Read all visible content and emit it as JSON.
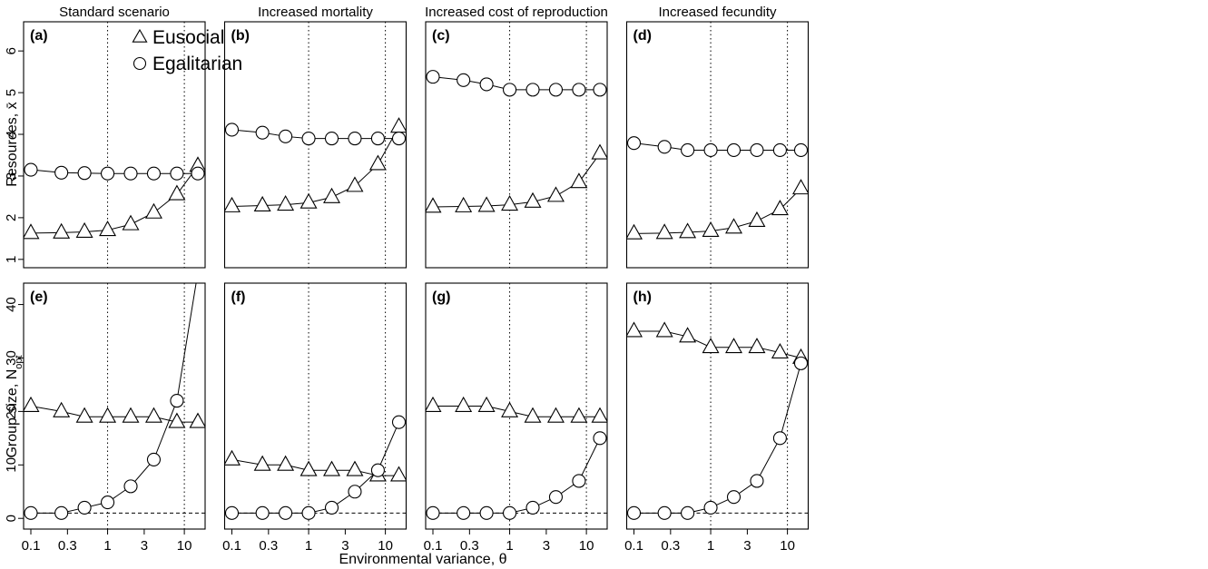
{
  "figure": {
    "xlabel": "Environmental variance, θ",
    "ylabel_top": "Resources, x̄",
    "ylabel_bottom_main": "Group size, N",
    "ylabel_bottom_sub": "opt"
  },
  "legend": {
    "placement": "top-right of panel (a)",
    "entries": [
      {
        "series": "Eusocial",
        "marker": "triangle"
      },
      {
        "series": "Egalitarian",
        "marker": "circle"
      }
    ]
  },
  "columns": [
    "Standard scenario",
    "Increased mortality",
    "Increased cost of reproduction",
    "Increased fecundity"
  ],
  "chart_data": [
    {
      "type": "line",
      "panel": "(a)",
      "column": "Standard scenario",
      "x_scale": "log",
      "xlim": [
        0.1,
        15
      ],
      "ylim": [
        0.8,
        6.7
      ],
      "x_ticks": [
        "0.1",
        "0.3",
        "1",
        "3",
        "10"
      ],
      "y_ticks": [
        "1",
        "2",
        "3",
        "4",
        "5",
        "6"
      ],
      "vlines": [
        1,
        10
      ],
      "hlines": [],
      "x": [
        0.1,
        0.25,
        0.5,
        1,
        2,
        4,
        8,
        15
      ],
      "series": [
        {
          "name": "Eusocial",
          "marker": "triangle",
          "values": [
            1.63,
            1.64,
            1.66,
            1.7,
            1.84,
            2.12,
            2.56,
            3.24
          ]
        },
        {
          "name": "Egalitarian",
          "marker": "circle",
          "values": [
            3.15,
            3.08,
            3.07,
            3.06,
            3.06,
            3.06,
            3.06,
            3.06
          ]
        }
      ]
    },
    {
      "type": "line",
      "panel": "(b)",
      "column": "Increased mortality",
      "x_scale": "log",
      "xlim": [
        0.1,
        15
      ],
      "ylim": [
        0.8,
        6.7
      ],
      "x_ticks": [
        "0.1",
        "0.3",
        "1",
        "3",
        "10"
      ],
      "y_ticks": [
        "1",
        "2",
        "3",
        "4",
        "5",
        "6"
      ],
      "vlines": [
        1,
        10
      ],
      "hlines": [],
      "x": [
        0.1,
        0.25,
        0.5,
        1,
        2,
        4,
        8,
        15
      ],
      "series": [
        {
          "name": "Eusocial",
          "marker": "triangle",
          "values": [
            2.27,
            2.29,
            2.31,
            2.36,
            2.49,
            2.76,
            3.28,
            4.18
          ]
        },
        {
          "name": "Egalitarian",
          "marker": "circle",
          "values": [
            4.11,
            4.04,
            3.95,
            3.9,
            3.9,
            3.9,
            3.9,
            3.9
          ]
        }
      ]
    },
    {
      "type": "line",
      "panel": "(c)",
      "column": "Increased cost of reproduction",
      "x_scale": "log",
      "xlim": [
        0.1,
        15
      ],
      "ylim": [
        0.8,
        6.7
      ],
      "x_ticks": [
        "0.1",
        "0.3",
        "1",
        "3",
        "10"
      ],
      "y_ticks": [
        "1",
        "2",
        "3",
        "4",
        "5",
        "6"
      ],
      "vlines": [
        1,
        10
      ],
      "hlines": [],
      "x": [
        0.1,
        0.25,
        0.5,
        1,
        2,
        4,
        8,
        15
      ],
      "series": [
        {
          "name": "Eusocial",
          "marker": "triangle",
          "values": [
            2.26,
            2.27,
            2.28,
            2.31,
            2.38,
            2.52,
            2.85,
            3.54
          ]
        },
        {
          "name": "Egalitarian",
          "marker": "circle",
          "values": [
            5.38,
            5.3,
            5.2,
            5.07,
            5.07,
            5.07,
            5.07,
            5.07
          ]
        }
      ]
    },
    {
      "type": "line",
      "panel": "(d)",
      "column": "Increased fecundity",
      "x_scale": "log",
      "xlim": [
        0.1,
        15
      ],
      "ylim": [
        0.8,
        6.7
      ],
      "x_ticks": [
        "0.1",
        "0.3",
        "1",
        "3",
        "10"
      ],
      "y_ticks": [
        "1",
        "2",
        "3",
        "4",
        "5",
        "6"
      ],
      "vlines": [
        1,
        10
      ],
      "hlines": [],
      "x": [
        0.1,
        0.25,
        0.5,
        1,
        2,
        4,
        8,
        15
      ],
      "series": [
        {
          "name": "Eusocial",
          "marker": "triangle",
          "values": [
            1.62,
            1.63,
            1.65,
            1.68,
            1.76,
            1.92,
            2.2,
            2.7
          ]
        },
        {
          "name": "Egalitarian",
          "marker": "circle",
          "values": [
            3.79,
            3.7,
            3.62,
            3.62,
            3.62,
            3.62,
            3.62,
            3.62
          ]
        }
      ]
    },
    {
      "type": "line",
      "panel": "(e)",
      "column": "Standard scenario",
      "x_scale": "log",
      "xlim": [
        0.1,
        15
      ],
      "ylim": [
        -2,
        44
      ],
      "x_ticks": [
        "0.1",
        "0.3",
        "1",
        "3",
        "10"
      ],
      "y_ticks": [
        "0",
        "10",
        "20",
        "30",
        "40"
      ],
      "vlines": [
        1,
        10
      ],
      "hlines": [
        1
      ],
      "x": [
        0.1,
        0.25,
        0.5,
        1,
        2,
        4,
        8,
        15
      ],
      "series": [
        {
          "name": "Eusocial",
          "marker": "triangle",
          "values": [
            21,
            20,
            19,
            19,
            19,
            19,
            18,
            18
          ]
        },
        {
          "name": "Egalitarian",
          "marker": "circle",
          "values": [
            1,
            1,
            2,
            3,
            6,
            11,
            22,
            46
          ]
        }
      ]
    },
    {
      "type": "line",
      "panel": "(f)",
      "column": "Increased mortality",
      "x_scale": "log",
      "xlim": [
        0.1,
        15
      ],
      "ylim": [
        -2,
        44
      ],
      "x_ticks": [
        "0.1",
        "0.3",
        "1",
        "3",
        "10"
      ],
      "y_ticks": [
        "0",
        "10",
        "20",
        "30",
        "40"
      ],
      "vlines": [
        1,
        10
      ],
      "hlines": [
        1
      ],
      "x": [
        0.1,
        0.25,
        0.5,
        1,
        2,
        4,
        8,
        15
      ],
      "series": [
        {
          "name": "Eusocial",
          "marker": "triangle",
          "values": [
            11,
            10,
            10,
            9,
            9,
            9,
            8,
            8
          ]
        },
        {
          "name": "Egalitarian",
          "marker": "circle",
          "values": [
            1,
            1,
            1,
            1,
            2,
            5,
            9,
            18
          ]
        }
      ]
    },
    {
      "type": "line",
      "panel": "(g)",
      "column": "Increased cost of reproduction",
      "x_scale": "log",
      "xlim": [
        0.1,
        15
      ],
      "ylim": [
        -2,
        44
      ],
      "x_ticks": [
        "0.1",
        "0.3",
        "1",
        "3",
        "10"
      ],
      "y_ticks": [
        "0",
        "10",
        "20",
        "30",
        "40"
      ],
      "vlines": [
        1,
        10
      ],
      "hlines": [
        1
      ],
      "x": [
        0.1,
        0.25,
        0.5,
        1,
        2,
        4,
        8,
        15
      ],
      "series": [
        {
          "name": "Eusocial",
          "marker": "triangle",
          "values": [
            21,
            21,
            21,
            20,
            19,
            19,
            19,
            19
          ]
        },
        {
          "name": "Egalitarian",
          "marker": "circle",
          "values": [
            1,
            1,
            1,
            1,
            2,
            4,
            7,
            15
          ]
        }
      ]
    },
    {
      "type": "line",
      "panel": "(h)",
      "column": "Increased fecundity",
      "x_scale": "log",
      "xlim": [
        0.1,
        15
      ],
      "ylim": [
        -2,
        44
      ],
      "x_ticks": [
        "0.1",
        "0.3",
        "1",
        "3",
        "10"
      ],
      "y_ticks": [
        "0",
        "10",
        "20",
        "30",
        "40"
      ],
      "vlines": [
        1,
        10
      ],
      "hlines": [
        1
      ],
      "x": [
        0.1,
        0.25,
        0.5,
        1,
        2,
        4,
        8,
        15
      ],
      "series": [
        {
          "name": "Eusocial",
          "marker": "triangle",
          "values": [
            35,
            35,
            34,
            32,
            32,
            32,
            31,
            30
          ]
        },
        {
          "name": "Egalitarian",
          "marker": "circle",
          "values": [
            1,
            1,
            1,
            2,
            4,
            7,
            15,
            29
          ]
        }
      ]
    }
  ]
}
